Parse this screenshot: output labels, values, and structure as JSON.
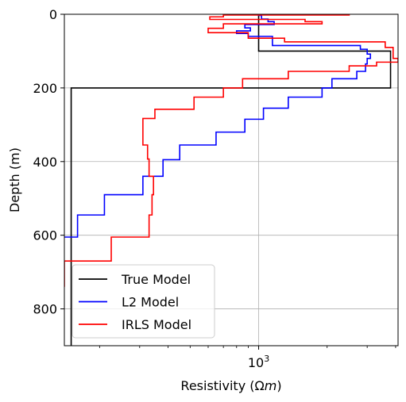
{
  "chart_data": {
    "type": "line",
    "xlabel": "Resistivity (Ωm)",
    "xlabel_parts": {
      "text": "Resistivity (",
      "omega": "Ω",
      "m": "m",
      "close": ")"
    },
    "ylabel": "Depth (m)",
    "x_scale": "log",
    "xlim": [
      140,
      4100
    ],
    "ylim": [
      900,
      0
    ],
    "y_inverted": true,
    "x_ticks": [
      {
        "value": 1000,
        "base": "10",
        "exp": "3"
      }
    ],
    "y_ticks": [
      0,
      200,
      400,
      600,
      800
    ],
    "grid": true,
    "legend_position": "lower-left",
    "series": [
      {
        "name": "True Model",
        "color": "#000000",
        "points": [
          [
            1000,
            0
          ],
          [
            1000,
            100
          ],
          [
            3800,
            100
          ],
          [
            3800,
            200
          ],
          [
            150,
            200
          ],
          [
            150,
            900
          ]
        ]
      },
      {
        "name": "L2 Model",
        "color": "#0000ff",
        "points": [
          [
            1000,
            0
          ],
          [
            1000,
            3
          ],
          [
            1030,
            3
          ],
          [
            1030,
            13
          ],
          [
            1100,
            13
          ],
          [
            1100,
            20
          ],
          [
            1170,
            20
          ],
          [
            1170,
            28
          ],
          [
            870,
            28
          ],
          [
            870,
            37
          ],
          [
            920,
            37
          ],
          [
            920,
            45
          ],
          [
            800,
            45
          ],
          [
            800,
            52
          ],
          [
            900,
            52
          ],
          [
            900,
            60
          ],
          [
            1150,
            60
          ],
          [
            1150,
            85
          ],
          [
            2800,
            85
          ],
          [
            2800,
            95
          ],
          [
            3000,
            95
          ],
          [
            3000,
            108
          ],
          [
            3100,
            108
          ],
          [
            3100,
            120
          ],
          [
            3000,
            120
          ],
          [
            3000,
            135
          ],
          [
            2950,
            135
          ],
          [
            2950,
            155
          ],
          [
            2700,
            155
          ],
          [
            2700,
            175
          ],
          [
            2100,
            175
          ],
          [
            2100,
            200
          ],
          [
            1900,
            200
          ],
          [
            1900,
            225
          ],
          [
            1350,
            225
          ],
          [
            1350,
            255
          ],
          [
            1050,
            255
          ],
          [
            1050,
            285
          ],
          [
            870,
            285
          ],
          [
            870,
            320
          ],
          [
            650,
            320
          ],
          [
            650,
            355
          ],
          [
            450,
            355
          ],
          [
            450,
            395
          ],
          [
            380,
            395
          ],
          [
            380,
            440
          ],
          [
            310,
            440
          ],
          [
            310,
            490
          ],
          [
            210,
            490
          ],
          [
            210,
            545
          ],
          [
            160,
            545
          ],
          [
            160,
            605
          ],
          [
            140,
            605
          ]
        ]
      },
      {
        "name": "IRLS Model",
        "color": "#ff0000",
        "points": [
          [
            2500,
            0
          ],
          [
            2500,
            2
          ],
          [
            700,
            2
          ],
          [
            700,
            7
          ],
          [
            610,
            7
          ],
          [
            610,
            14
          ],
          [
            1600,
            14
          ],
          [
            1600,
            20
          ],
          [
            1900,
            20
          ],
          [
            1900,
            26
          ],
          [
            700,
            26
          ],
          [
            700,
            38
          ],
          [
            600,
            38
          ],
          [
            600,
            50
          ],
          [
            900,
            50
          ],
          [
            900,
            65
          ],
          [
            1300,
            65
          ],
          [
            1300,
            75
          ],
          [
            3600,
            75
          ],
          [
            3600,
            90
          ],
          [
            3900,
            90
          ],
          [
            3900,
            120
          ],
          [
            4100,
            120
          ],
          [
            4100,
            130
          ],
          [
            3300,
            130
          ],
          [
            3300,
            140
          ],
          [
            2500,
            140
          ],
          [
            2500,
            155
          ],
          [
            1350,
            155
          ],
          [
            1350,
            175
          ],
          [
            850,
            175
          ],
          [
            850,
            200
          ],
          [
            700,
            200
          ],
          [
            700,
            225
          ],
          [
            520,
            225
          ],
          [
            520,
            258
          ],
          [
            350,
            258
          ],
          [
            350,
            283
          ],
          [
            310,
            283
          ],
          [
            310,
            355
          ],
          [
            325,
            355
          ],
          [
            325,
            393
          ],
          [
            330,
            393
          ],
          [
            330,
            440
          ],
          [
            345,
            440
          ],
          [
            345,
            490
          ],
          [
            340,
            490
          ],
          [
            340,
            545
          ],
          [
            330,
            545
          ],
          [
            330,
            605
          ],
          [
            225,
            605
          ],
          [
            225,
            670
          ],
          [
            140,
            670
          ],
          [
            140,
            740
          ]
        ]
      }
    ]
  }
}
